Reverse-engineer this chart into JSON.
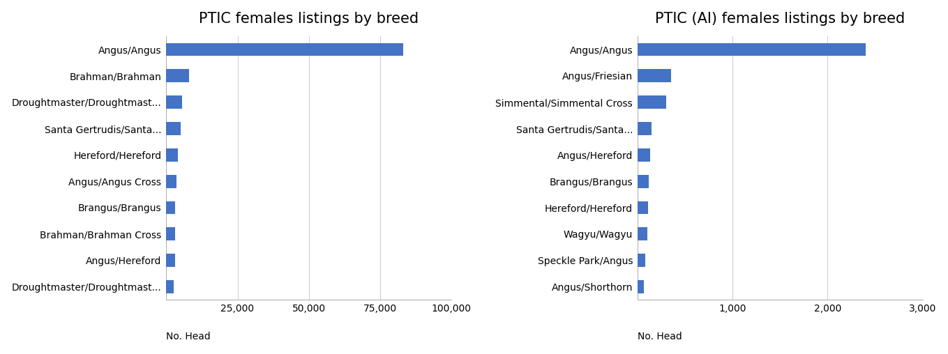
{
  "left": {
    "title": "PTIC females listings by breed",
    "categories": [
      "Droughtmaster/Droughtmast...",
      "Angus/Hereford",
      "Brahman/Brahman Cross",
      "Brangus/Brangus",
      "Angus/Angus Cross",
      "Hereford/Hereford",
      "Santa Gertrudis/Santa...",
      "Droughtmaster/Droughtmast...",
      "Brahman/Brahman",
      "Angus/Angus"
    ],
    "values": [
      2500,
      3000,
      3000,
      3000,
      3500,
      4000,
      5000,
      5500,
      8000,
      83000
    ],
    "bar_color": "#4472C4",
    "xlim": [
      0,
      100000
    ],
    "xticks": [
      25000,
      50000,
      75000,
      100000
    ],
    "xtick_labels": [
      "25,000",
      "50,000",
      "75,000",
      "100,000"
    ],
    "xlabel": "No. Head"
  },
  "right": {
    "title": "PTIC (AI) females listings by breed",
    "categories": [
      "Angus/Shorthorn",
      "Speckle Park/Angus",
      "Wagyu/Wagyu",
      "Hereford/Hereford",
      "Brangus/Brangus",
      "Angus/Hereford",
      "Santa Gertrudis/Santa...",
      "Simmental/Simmental Cross",
      "Angus/Friesian",
      "Angus/Angus"
    ],
    "values": [
      70,
      80,
      100,
      110,
      120,
      130,
      150,
      300,
      350,
      2400
    ],
    "bar_color": "#4472C4",
    "xlim": [
      0,
      3000
    ],
    "xticks": [
      1000,
      2000,
      3000
    ],
    "xtick_labels": [
      "1,000",
      "2,000",
      "3,000"
    ],
    "xlabel": "No. Head"
  },
  "background_color": "#ffffff",
  "bar_height": 0.5,
  "title_fontsize": 15,
  "label_fontsize": 10,
  "tick_fontsize": 10,
  "grid_color": "#d0d0d0",
  "border_color": "#b0b0b0"
}
